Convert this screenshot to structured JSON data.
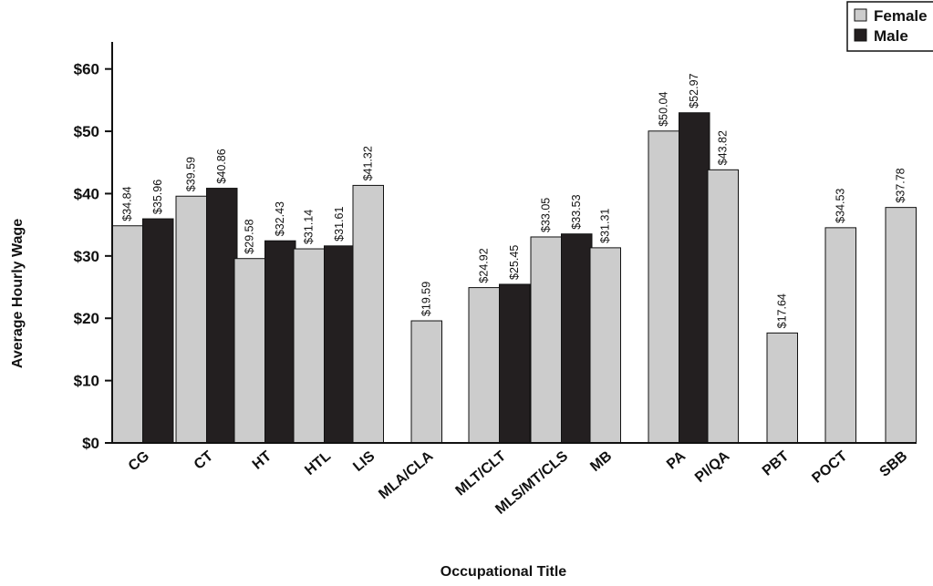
{
  "chart_data": {
    "type": "bar",
    "categories": [
      "CG",
      "CT",
      "HT",
      "HTL",
      "LIS",
      "MLA/CLA",
      "MLT/CLT",
      "MLS/MT/CLS",
      "MB",
      "PA",
      "PI/QA",
      "PBT",
      "POCT",
      "SBB"
    ],
    "series": [
      {
        "name": "Female",
        "color": "#cccccc",
        "values": [
          34.84,
          39.59,
          29.58,
          31.14,
          41.32,
          19.59,
          24.92,
          33.05,
          31.31,
          50.04,
          43.82,
          17.64,
          34.53,
          37.78
        ],
        "labels": [
          "$34.84",
          "$39.59",
          "$29.58",
          "$31.14",
          "$41.32",
          "$19.59",
          "$24.92",
          "$33.05",
          "$31.31",
          "$50.04",
          "$43.82",
          "$17.64",
          "$34.53",
          "$37.78"
        ]
      },
      {
        "name": "Male",
        "color": "#231f20",
        "values": [
          35.96,
          40.86,
          32.43,
          31.61,
          null,
          null,
          25.45,
          33.53,
          null,
          52.97,
          null,
          null,
          null,
          null
        ],
        "labels": [
          "$35.96",
          "$40.86",
          "$32.43",
          "$31.61",
          null,
          null,
          "$25.45",
          "$33.53",
          null,
          "$52.97",
          null,
          null,
          null,
          null
        ]
      }
    ],
    "xlabel": "Occupational Title",
    "ylabel": "Average Hourly Wage",
    "ylim": [
      0,
      62
    ],
    "yticks": [
      0,
      10,
      20,
      30,
      40,
      50,
      60
    ],
    "ytick_labels": [
      "$0",
      "$10",
      "$20",
      "$30",
      "$40",
      "$50",
      "$60"
    ],
    "grid": false,
    "legend": "top-right"
  }
}
